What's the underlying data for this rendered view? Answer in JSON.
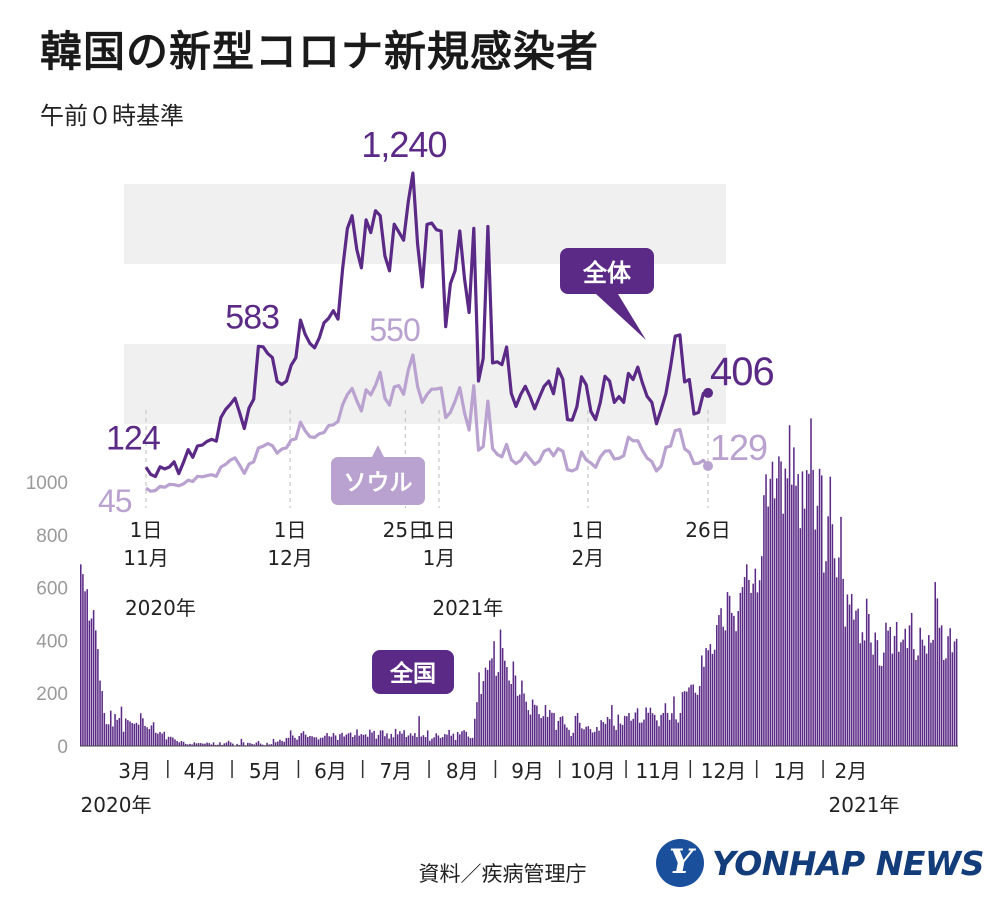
{
  "title": "韓国の新型コロナ新規感染者",
  "subtitle": "午前０時基準",
  "source": "資料／疾病管理庁",
  "logo": {
    "mark": "Y",
    "text": "YONHAP NEWS"
  },
  "colors": {
    "total": "#5b2a86",
    "seoul": "#b9a2cf",
    "bars": "#5b2a86",
    "band": "#f0f0f0",
    "tag_bg": "#5b2a86"
  },
  "chart_data": [
    {
      "type": "line",
      "x_range": [
        "2020-11-01",
        "2021-02-26"
      ],
      "x_tick_labels": [
        {
          "date": "2020-11-01",
          "day": "1日",
          "month": "11月"
        },
        {
          "date": "2020-12-01",
          "day": "1日",
          "month": "12月"
        },
        {
          "date": "2020-12-25",
          "day": "25日",
          "month": ""
        },
        {
          "date": "2021-01-01",
          "day": "1日",
          "month": "1月"
        },
        {
          "date": "2021-02-01",
          "day": "1日",
          "month": "2月"
        },
        {
          "date": "2021-02-26",
          "day": "26日",
          "month": ""
        }
      ],
      "year_labels": [
        {
          "date": "2020-11-04",
          "text": "2020年"
        },
        {
          "date": "2021-01-07",
          "text": "2021年"
        }
      ],
      "series": [
        {
          "name": "全体",
          "values": [
            124,
            97,
            89,
            126,
            118,
            125,
            145,
            100,
            143,
            191,
            162,
            205,
            208,
            222,
            230,
            223,
            313,
            343,
            363,
            386,
            330,
            271,
            349,
            382,
            583,
            581,
            555,
            540,
            450,
            438,
            451,
            511,
            540,
            682,
            628,
            594,
            577,
            615,
            672,
            689,
            718,
            686,
            880,
            1030,
            1078,
            950,
            880,
            1062,
            1014,
            1097,
            1078,
            926,
            869,
            1046,
            1016,
            985,
            1132,
            1240,
            970,
            808,
            1045,
            1050,
            1025,
            1020,
            657,
            820,
            870,
            1020,
            840,
            711,
            1030,
            451,
            537,
            1037,
            520,
            524,
            513,
            580,
            404,
            355,
            400,
            431,
            392,
            346,
            390,
            431,
            451,
            403,
            497,
            458,
            305,
            303,
            354,
            467,
            437,
            336,
            305,
            370,
            469,
            451,
            370,
            392,
            370,
            480,
            457,
            504,
            444,
            393,
            371,
            289,
            344,
            403,
            504,
            621,
            626,
            448,
            457,
            326,
            332,
            404,
            406
          ]
        },
        {
          "name": "ソウル",
          "values": [
            45,
            33,
            36,
            52,
            48,
            59,
            58,
            54,
            61,
            75,
            70,
            90,
            88,
            92,
            96,
            90,
            125,
            135,
            151,
            160,
            132,
            101,
            136,
            145,
            197,
            204,
            214,
            206,
            178,
            193,
            198,
            228,
            232,
            295,
            262,
            240,
            237,
            251,
            256,
            282,
            285,
            298,
            362,
            400,
            423,
            376,
            338,
            418,
            399,
            435,
            484,
            386,
            360,
            429,
            434,
            401,
            493,
            550,
            430,
            370,
            400,
            420,
            421,
            425,
            313,
            332,
            375,
            426,
            331,
            265,
            434,
            189,
            203,
            375,
            195,
            173,
            164,
            211,
            153,
            138,
            150,
            179,
            157,
            135,
            148,
            185,
            193,
            168,
            195,
            185,
            115,
            110,
            119,
            182,
            152,
            140,
            124,
            163,
            185,
            187,
            156,
            158,
            168,
            238,
            224,
            225,
            188,
            159,
            146,
            110,
            129,
            200,
            204,
            263,
            267,
            194,
            181,
            138,
            139,
            150,
            129
          ]
        }
      ],
      "point_labels": [
        {
          "date": "2020-11-01",
          "value": 124,
          "text": "124"
        },
        {
          "date": "2020-11-01",
          "value": 45,
          "text": "45"
        },
        {
          "date": "2020-11-25",
          "value": 583,
          "text": "583"
        },
        {
          "date": "2020-12-25",
          "value": 1240,
          "text": "1,240"
        },
        {
          "date": "2020-12-25",
          "value": 550,
          "text": "550"
        },
        {
          "date": "2021-02-26",
          "value": 406,
          "text": "406"
        },
        {
          "date": "2021-02-26",
          "value": 129,
          "text": "129"
        }
      ],
      "tags": {
        "total": "全体",
        "seoul": "ソウル"
      }
    },
    {
      "type": "bar",
      "title": "全国",
      "y_ticks": [
        0,
        200,
        400,
        600,
        800,
        1000
      ],
      "ylim": [
        0,
        1200
      ],
      "x_range": [
        "2020-02-20",
        "2021-02-26"
      ],
      "month_labels": [
        "3月",
        "4月",
        "5月",
        "6月",
        "7月",
        "8月",
        "9月",
        "10月",
        "11月",
        "12月",
        "1月",
        "2月"
      ],
      "year_labels": [
        "2020年",
        "2021年"
      ],
      "values": [
        688,
        651,
        586,
        594,
        475,
        483,
        515,
        438,
        367,
        248,
        208,
        125,
        83,
        82,
        134,
        74,
        121,
        99,
        106,
        149,
        54,
        104,
        98,
        93,
        87,
        84,
        88,
        81,
        124,
        105,
        76,
        71,
        64,
        78,
        90,
        50,
        47,
        53,
        47,
        54,
        25,
        35,
        35,
        32,
        25,
        19,
        14,
        19,
        16,
        8,
        6,
        8,
        6,
        14,
        10,
        11,
        11,
        9,
        9,
        13,
        11,
        6,
        14,
        4,
        5,
        14,
        4,
        10,
        13,
        20,
        14,
        9,
        1,
        8,
        4,
        27,
        14,
        3,
        12,
        11,
        8,
        6,
        13,
        19,
        9,
        5,
        3,
        12,
        6,
        7,
        27,
        14,
        17,
        24,
        19,
        16,
        30,
        31,
        59,
        40,
        31,
        24,
        38,
        49,
        56,
        43,
        34,
        38,
        37,
        33,
        33,
        25,
        31,
        32,
        39,
        49,
        37,
        35,
        49,
        40,
        23,
        45,
        50,
        36,
        43,
        48,
        51,
        34,
        41,
        63,
        39,
        45,
        42,
        44,
        35,
        62,
        51,
        57,
        28,
        42,
        59,
        59,
        37,
        48,
        28,
        46,
        33,
        65,
        44,
        56,
        47,
        60,
        34,
        40,
        48,
        39,
        49,
        34,
        113,
        36,
        41,
        34,
        59,
        20,
        28,
        33,
        48,
        40,
        30,
        34,
        45,
        43,
        61,
        39,
        47,
        23,
        53,
        44,
        56,
        60,
        54,
        36,
        30,
        31,
        103,
        166,
        279,
        197,
        246,
        297,
        288,
        324,
        332,
        397,
        266,
        280,
        441,
        371,
        323,
        299,
        248,
        235,
        320,
        267,
        190,
        195,
        248,
        199,
        168,
        136,
        119,
        176,
        156,
        153,
        121,
        106,
        113,
        155,
        110,
        136,
        126,
        125,
        61,
        95,
        110,
        113,
        82,
        70,
        61,
        38,
        50,
        114,
        125,
        88,
        67,
        63,
        73,
        75,
        64,
        51,
        54,
        72,
        58,
        98,
        91,
        84,
        110,
        102,
        155,
        77,
        61,
        119,
        85,
        80,
        114,
        113,
        125,
        96,
        103,
        127,
        143,
        88,
        89,
        100,
        146,
        126,
        145,
        124,
        118,
        97,
        75,
        118,
        125,
        162,
        125,
        99,
        124,
        188,
        101,
        89,
        125,
        204,
        208,
        206,
        222,
        232,
        233,
        202,
        194,
        227,
        343,
        300,
        371,
        363,
        386,
        349,
        365,
        458,
        496,
        522,
        452,
        438,
        583,
        569,
        504,
        493,
        435,
        511,
        580,
        602,
        640,
        688,
        629,
        580,
        615,
        672,
        582,
        628,
        719,
        950,
        1029,
        907,
        1012,
        1077,
        938,
        1014,
        1097,
        1078,
        880,
        1051,
        1014,
        1215,
        990,
        1131,
        986,
        1030,
        825,
        1040,
        899,
        1045,
        1031,
        1241,
        1046,
        820,
        910,
        1050,
        1025,
        657,
        700,
        870,
        1020,
        840,
        711,
        639,
        714,
        868,
        633,
        452,
        574,
        536,
        576,
        479,
        513,
        520,
        389,
        431,
        400,
        558,
        500,
        392,
        346,
        430,
        401,
        305,
        303,
        354,
        467,
        437,
        451,
        350,
        417,
        470,
        357,
        393,
        403,
        444,
        371,
        457,
        504,
        367,
        326,
        343,
        448,
        403,
        380,
        350,
        420,
        391,
        402,
        621,
        559,
        448,
        457,
        326,
        332,
        416,
        446,
        355,
        396,
        406
      ]
    }
  ]
}
